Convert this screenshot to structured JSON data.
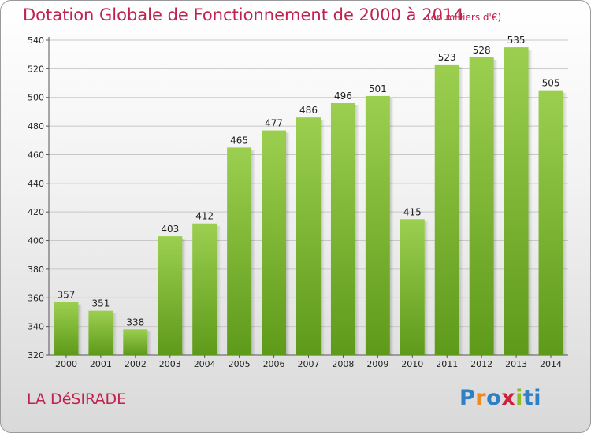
{
  "header": {
    "title": "Dotation Globale de Fonctionnement de 2000 à 2014",
    "unit": "(en milliers d'€)"
  },
  "footer": {
    "commune": "LA DéSIRADE",
    "logo_letters": [
      "P",
      "r",
      "o",
      "x",
      "i",
      "ti"
    ]
  },
  "colors": {
    "title": "#c0224f",
    "bar_top": "#9ccf4f",
    "bar_bottom": "#5e9a1a",
    "grid": "#c8c8c8"
  },
  "chart_data": {
    "type": "bar",
    "categories": [
      "2000",
      "2001",
      "2002",
      "2003",
      "2004",
      "2005",
      "2006",
      "2007",
      "2008",
      "2009",
      "2010",
      "2011",
      "2012",
      "2013",
      "2014"
    ],
    "values": [
      357,
      351,
      338,
      403,
      412,
      465,
      477,
      486,
      496,
      501,
      415,
      523,
      528,
      535,
      505
    ],
    "ylim": [
      320,
      540
    ],
    "yticks": [
      320,
      340,
      360,
      380,
      400,
      420,
      440,
      460,
      480,
      500,
      520,
      540
    ],
    "grid": true,
    "xlabel": "",
    "ylabel": ""
  }
}
